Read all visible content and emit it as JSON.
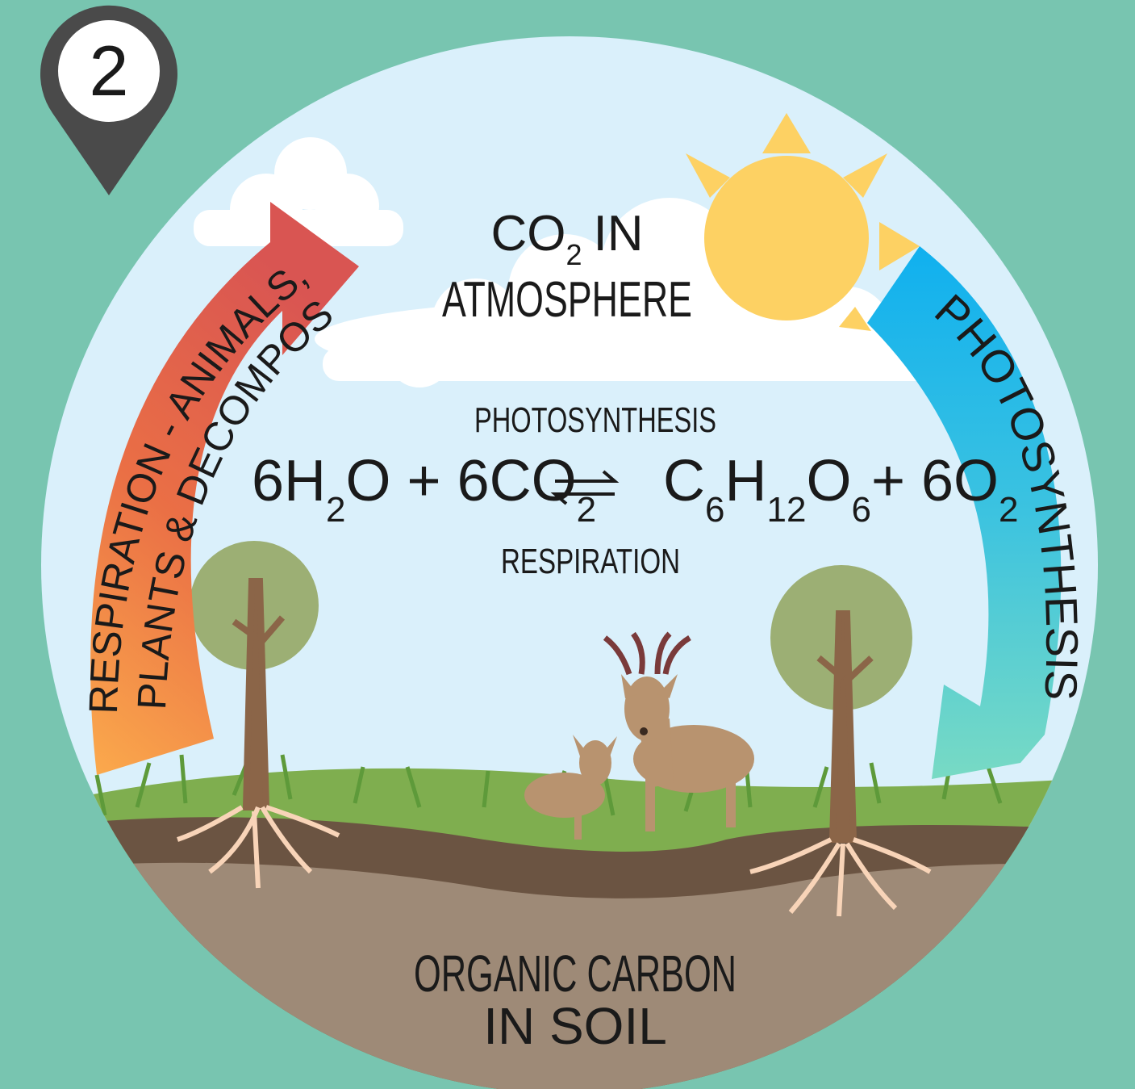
{
  "marker": {
    "number": "2"
  },
  "atmosphere": {
    "line1": {
      "text": "CO",
      "sub": "2",
      "rest": "IN"
    },
    "line2": "ATMOSPHERE"
  },
  "equation": {
    "top_label": "PHOTOSYNTHESIS",
    "bottom_label": "RESPIRATION",
    "reactants": [
      {
        "text": "6H",
        "sub": "2"
      },
      {
        "text": "O + 6CO",
        "sub": "2"
      }
    ],
    "products": [
      {
        "text": "C",
        "sub": "6"
      },
      {
        "text": "H",
        "sub": "12"
      },
      {
        "text": "O",
        "sub": "6"
      },
      {
        "text": "+ 6O",
        "sub": "2"
      }
    ]
  },
  "respiration_arrow": {
    "line1": "RESPIRATION - ANIMALS,",
    "line2": "PLANTS & DECOMPOSERS"
  },
  "photosynthesis_arrow": {
    "label": "PHOTOSYNTHESIS"
  },
  "soil": {
    "line1": "ORGANIC CARBON",
    "line2": "IN SOIL"
  }
}
